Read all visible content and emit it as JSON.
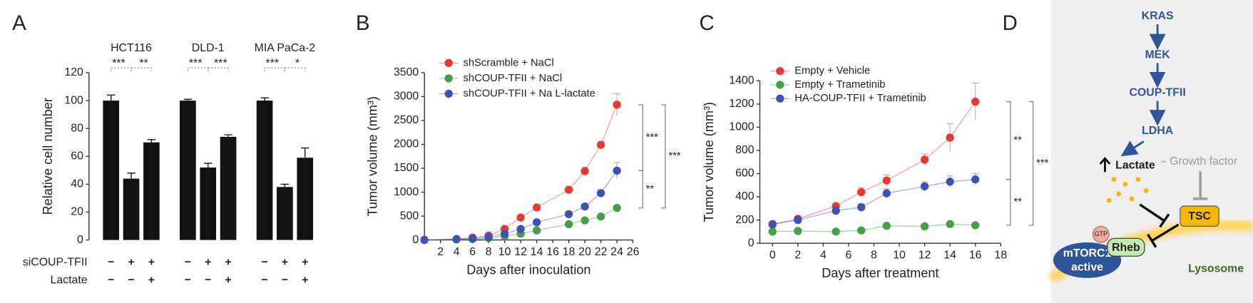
{
  "chart_data": [
    {
      "type": "bar",
      "panel": "A",
      "groups": [
        "HCT116",
        "DLD-1",
        "MIA PaCa-2"
      ],
      "values": [
        [
          100,
          44,
          70
        ],
        [
          100,
          52,
          74
        ],
        [
          100,
          38,
          59
        ]
      ],
      "errors": [
        [
          4,
          4,
          2
        ],
        [
          1,
          3,
          1.5
        ],
        [
          2,
          2,
          7
        ]
      ],
      "significance": [
        [
          "***",
          "**"
        ],
        [
          "***",
          "***"
        ],
        [
          "***",
          "*"
        ]
      ],
      "ylabel": "Relative cell number",
      "ylim": [
        0,
        120
      ],
      "yticks": [
        0,
        20,
        40,
        60,
        80,
        100,
        120
      ],
      "color": "#111111",
      "conditions": [
        {
          "label": "siCOUP-TFII",
          "signs": [
            [
              "−",
              "+",
              "+"
            ],
            [
              "−",
              "+",
              "+"
            ],
            [
              "−",
              "+",
              "+"
            ]
          ]
        },
        {
          "label": "Lactate",
          "signs": [
            [
              "−",
              "−",
              "+"
            ],
            [
              "−",
              "−",
              "+"
            ],
            [
              "−",
              "−",
              "+"
            ]
          ]
        }
      ]
    },
    {
      "type": "line",
      "panel": "B",
      "x": [
        0,
        4,
        6,
        8,
        10,
        12,
        14,
        18,
        20,
        22,
        24
      ],
      "series": [
        {
          "name": "shScramble + NaCl",
          "color": "#e53935",
          "values": [
            0,
            20,
            50,
            90,
            230,
            470,
            680,
            1050,
            1440,
            1990,
            2830
          ],
          "errors": [
            0,
            5,
            10,
            15,
            30,
            30,
            40,
            50,
            80,
            60,
            230
          ]
        },
        {
          "name": "shCOUP-TFII + NaCl",
          "color": "#43a047",
          "values": [
            0,
            10,
            20,
            40,
            80,
            130,
            200,
            330,
            410,
            490,
            670
          ],
          "errors": [
            0,
            3,
            5,
            5,
            10,
            15,
            20,
            20,
            30,
            30,
            40
          ]
        },
        {
          "name": "shCOUP-TFII + Na L-lactate",
          "color": "#3f51b5",
          "values": [
            0,
            15,
            30,
            60,
            130,
            230,
            370,
            540,
            700,
            980,
            1450
          ],
          "errors": [
            0,
            5,
            5,
            10,
            15,
            20,
            30,
            40,
            50,
            60,
            170
          ]
        }
      ],
      "significance": [
        "***",
        "**",
        "***"
      ],
      "xlabel": "Days after inoculation",
      "ylabel": "Tumor volume (mm³)",
      "xlim": [
        0,
        26
      ],
      "xticks": [
        2,
        4,
        6,
        8,
        10,
        12,
        14,
        16,
        18,
        20,
        22,
        24,
        26
      ],
      "ylim": [
        0,
        3500
      ],
      "yticks": [
        0,
        500,
        1000,
        1500,
        2000,
        2500,
        3000,
        3500
      ]
    },
    {
      "type": "line",
      "panel": "C",
      "x": [
        0,
        2,
        5,
        7,
        9,
        12,
        14,
        16
      ],
      "series": [
        {
          "name": "Empty + Vehicle",
          "color": "#e53935",
          "values": [
            160,
            210,
            320,
            440,
            540,
            720,
            910,
            1220
          ],
          "errors": [
            20,
            20,
            20,
            40,
            50,
            50,
            120,
            160
          ]
        },
        {
          "name": "Empty + Trametinib",
          "color": "#43a047",
          "values": [
            100,
            105,
            100,
            110,
            150,
            145,
            165,
            155
          ],
          "errors": [
            10,
            10,
            10,
            10,
            10,
            10,
            15,
            15
          ]
        },
        {
          "name": "HA-COUP-TFII + Trametinib",
          "color": "#3f51b5",
          "values": [
            165,
            200,
            280,
            310,
            430,
            490,
            530,
            550
          ],
          "errors": [
            20,
            20,
            30,
            30,
            40,
            40,
            50,
            50
          ]
        }
      ],
      "significance": [
        "**",
        "**",
        "***"
      ],
      "xlabel": "Days after treatment",
      "ylabel": "Tumor volume (mm³)",
      "xlim": [
        -1,
        18
      ],
      "xticks": [
        0,
        2,
        4,
        6,
        8,
        10,
        12,
        14,
        16,
        18
      ],
      "ylim": [
        0,
        1400
      ],
      "yticks": [
        0,
        200,
        400,
        600,
        800,
        1000,
        1200,
        1400
      ]
    }
  ],
  "diagram": {
    "panel": "D",
    "nodes": [
      "KRAS",
      "MEK",
      "COUP-TFII",
      "LDHA"
    ],
    "lactate": "Lactate",
    "growth_factor": "Growth factor",
    "tsc": "TSC",
    "gtp": "GTP",
    "rheb": "Rheb",
    "mtorc1": [
      "mTORC1",
      "active"
    ],
    "lysosome": "Lysosome"
  }
}
